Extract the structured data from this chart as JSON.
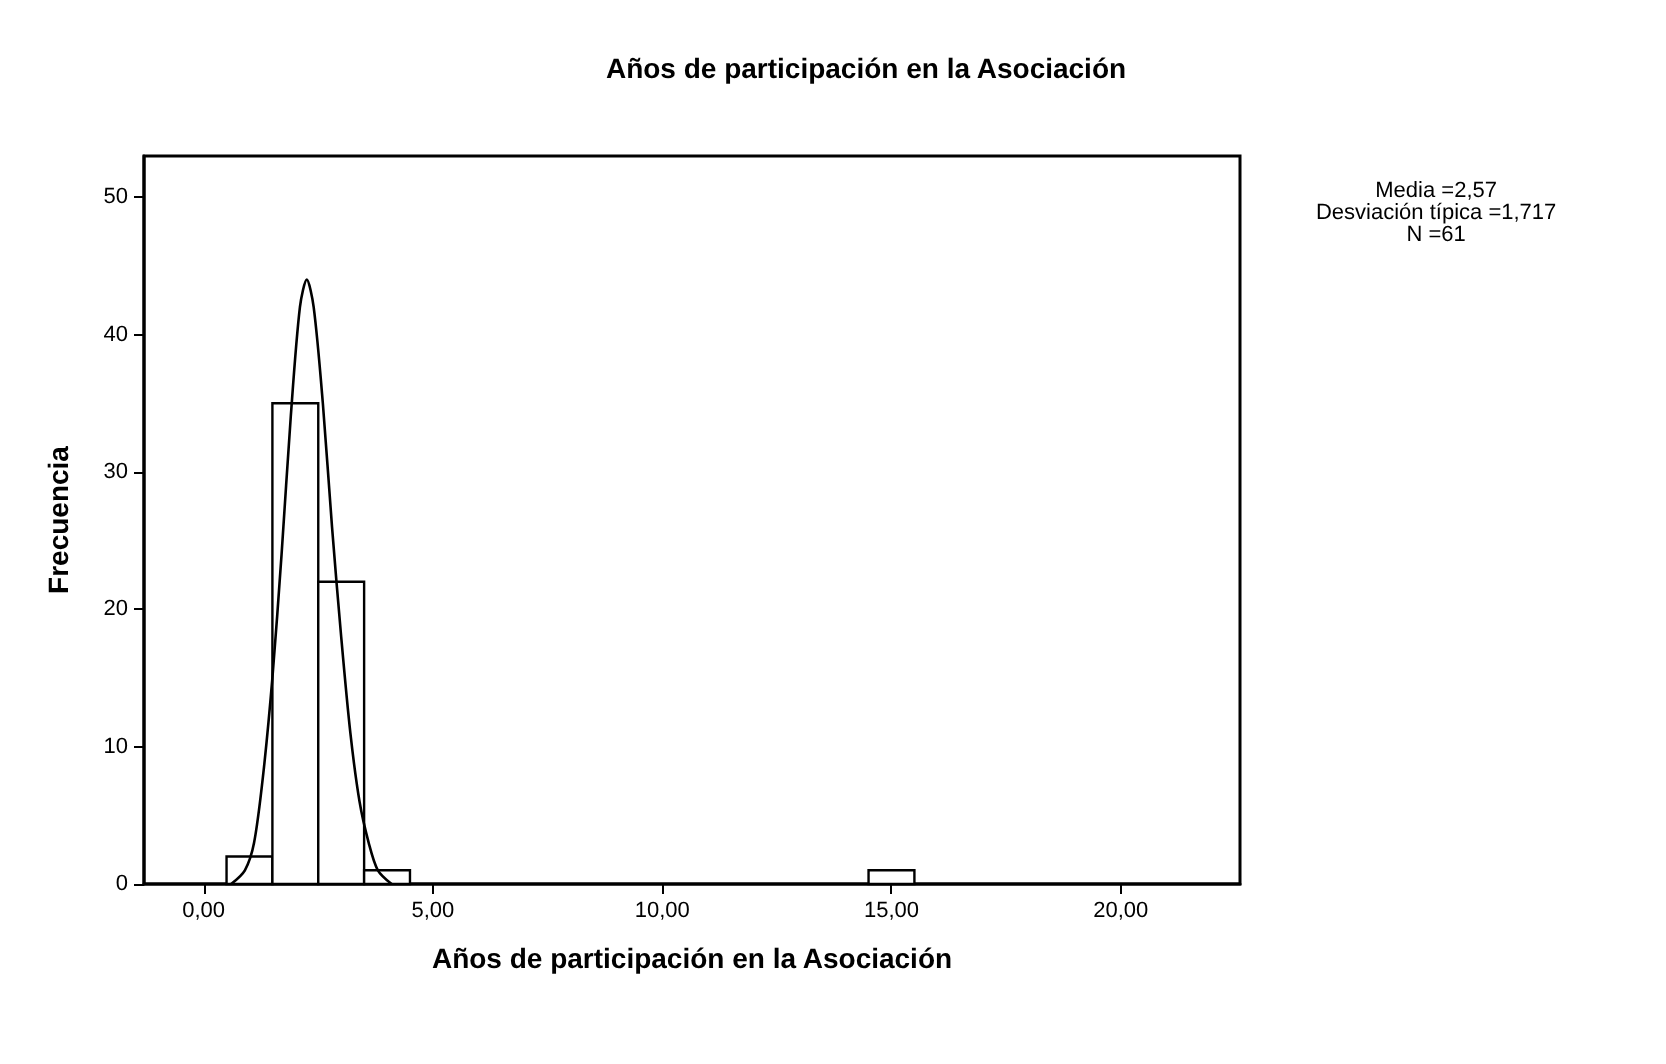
{
  "chart_data": {
    "type": "histogram",
    "title": "Años de participación en la Asociación",
    "xlabel": "Años de participación en la Asociación",
    "ylabel": "Frecuencia",
    "annotations": [
      "Media =2,57\nDesviación típica =1,717\nN =61"
    ],
    "bins": [
      0.5,
      1.5,
      2.5,
      3.5,
      4.5,
      5.5,
      6.5,
      7.5,
      8.5,
      9.5,
      10.5,
      11.5,
      12.5,
      13.5,
      14.5,
      15.5
    ],
    "values": [
      2,
      35,
      22,
      1,
      0,
      0,
      0,
      0,
      0,
      0,
      0,
      0,
      0,
      0,
      1
    ],
    "color": "#ffffff",
    "series": [
      {
        "type": "line",
        "color": "#000000",
        "x": [
          0.6,
          0.9,
          1.1,
          1.3,
          1.5,
          1.7,
          1.9,
          2.1,
          2.25,
          2.4,
          2.6,
          2.8,
          3.0,
          3.2,
          3.4,
          3.6,
          3.8,
          4.1
        ],
        "values": [
          0,
          1,
          3,
          8,
          15,
          24,
          34,
          42,
          44,
          42,
          35,
          26,
          18,
          11,
          6,
          3,
          1,
          0
        ]
      }
    ],
    "marker": "none",
    "line_style": "solid",
    "grid": false,
    "xlim": [
      -1.3,
      22.6
    ],
    "xticks": [
      {
        "value": 0,
        "label": "0,00"
      },
      {
        "value": 5,
        "label": "5,00"
      },
      {
        "value": 10,
        "label": "10,00"
      },
      {
        "value": 15,
        "label": "15,00"
      },
      {
        "value": 20,
        "label": "20,00"
      }
    ],
    "ylim": [
      0,
      53
    ],
    "yticks": [
      0,
      10,
      20,
      30,
      40,
      50
    ]
  }
}
